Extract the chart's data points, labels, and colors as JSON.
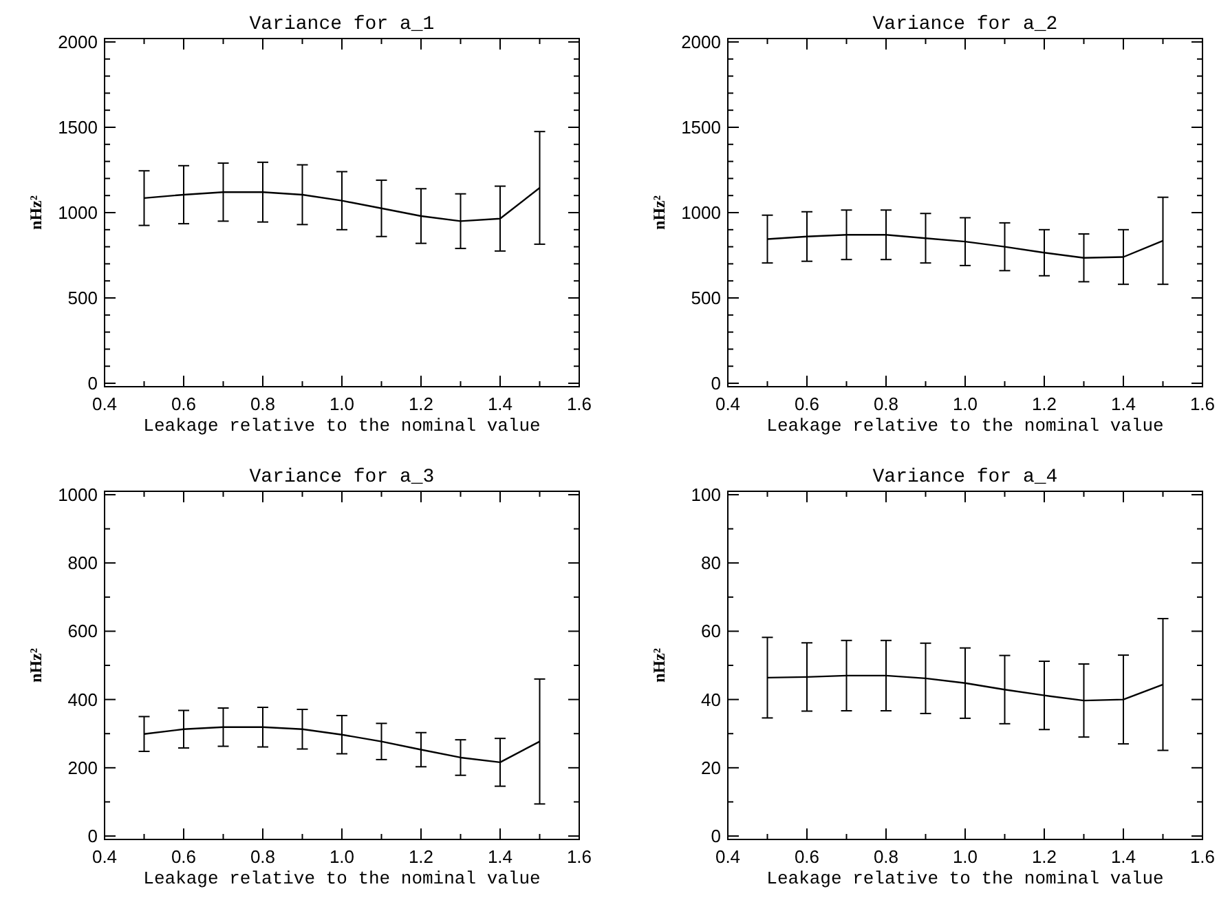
{
  "chart_data": [
    {
      "type": "line",
      "title": "Variance for a_1",
      "xlabel": "Leakage relative to the nominal value",
      "ylabel": "nHz²",
      "color": "#000000",
      "x": [
        0.5,
        0.6,
        0.7,
        0.8,
        0.9,
        1.0,
        1.1,
        1.2,
        1.3,
        1.4,
        1.5
      ],
      "values": [
        1085,
        1105,
        1120,
        1120,
        1105,
        1070,
        1025,
        980,
        950,
        965,
        1145
      ],
      "errors": [
        160,
        170,
        170,
        175,
        175,
        170,
        165,
        160,
        160,
        190,
        330
      ],
      "xlim": [
        0.4,
        1.6
      ],
      "xticks": [
        {
          "value": 0.4,
          "label": "0.4"
        },
        {
          "value": 0.5,
          "label": null
        },
        {
          "value": 0.6,
          "label": "0.6"
        },
        {
          "value": 0.7,
          "label": null
        },
        {
          "value": 0.8,
          "label": "0.8"
        },
        {
          "value": 0.9,
          "label": null
        },
        {
          "value": 1,
          "label": "1.0"
        },
        {
          "value": 1.1,
          "label": null
        },
        {
          "value": 1.2,
          "label": "1.2"
        },
        {
          "value": 1.3,
          "label": null
        },
        {
          "value": 1.4,
          "label": "1.4"
        },
        {
          "value": 1.5,
          "label": null
        },
        {
          "value": 1.6,
          "label": "1.6"
        }
      ],
      "ylim": [
        -20,
        2020
      ],
      "yticks": [
        0,
        {
          "value": 100,
          "label": null
        },
        {
          "value": 200,
          "label": null
        },
        {
          "value": 300,
          "label": null
        },
        {
          "value": 400,
          "label": null
        },
        500,
        {
          "value": 600,
          "label": null
        },
        {
          "value": 700,
          "label": null
        },
        {
          "value": 800,
          "label": null
        },
        {
          "value": 900,
          "label": null
        },
        1000,
        {
          "value": 1100,
          "label": null
        },
        {
          "value": 1200,
          "label": null
        },
        {
          "value": 1300,
          "label": null
        },
        {
          "value": 1400,
          "label": null
        },
        1500,
        {
          "value": 1600,
          "label": null
        },
        {
          "value": 1700,
          "label": null
        },
        {
          "value": 1800,
          "label": null
        },
        {
          "value": 1900,
          "label": null
        },
        2000
      ]
    },
    {
      "type": "line",
      "title": "Variance for a_2",
      "xlabel": "Leakage relative to the nominal value",
      "ylabel": "nHz²",
      "color": "#000000",
      "x": [
        0.5,
        0.6,
        0.7,
        0.8,
        0.9,
        1.0,
        1.1,
        1.2,
        1.3,
        1.4,
        1.5
      ],
      "values": [
        845,
        860,
        870,
        870,
        850,
        830,
        800,
        765,
        735,
        740,
        835
      ],
      "errors": [
        140,
        145,
        145,
        145,
        145,
        140,
        140,
        135,
        140,
        160,
        255
      ],
      "xlim": [
        0.4,
        1.6
      ],
      "xticks": [
        {
          "value": 0.4,
          "label": "0.4"
        },
        {
          "value": 0.5,
          "label": null
        },
        {
          "value": 0.6,
          "label": "0.6"
        },
        {
          "value": 0.7,
          "label": null
        },
        {
          "value": 0.8,
          "label": "0.8"
        },
        {
          "value": 0.9,
          "label": null
        },
        {
          "value": 1,
          "label": "1.0"
        },
        {
          "value": 1.1,
          "label": null
        },
        {
          "value": 1.2,
          "label": "1.2"
        },
        {
          "value": 1.3,
          "label": null
        },
        {
          "value": 1.4,
          "label": "1.4"
        },
        {
          "value": 1.5,
          "label": null
        },
        {
          "value": 1.6,
          "label": "1.6"
        }
      ],
      "ylim": [
        -20,
        2020
      ],
      "yticks": [
        0,
        {
          "value": 100,
          "label": null
        },
        {
          "value": 200,
          "label": null
        },
        {
          "value": 300,
          "label": null
        },
        {
          "value": 400,
          "label": null
        },
        500,
        {
          "value": 600,
          "label": null
        },
        {
          "value": 700,
          "label": null
        },
        {
          "value": 800,
          "label": null
        },
        {
          "value": 900,
          "label": null
        },
        1000,
        {
          "value": 1100,
          "label": null
        },
        {
          "value": 1200,
          "label": null
        },
        {
          "value": 1300,
          "label": null
        },
        {
          "value": 1400,
          "label": null
        },
        1500,
        {
          "value": 1600,
          "label": null
        },
        {
          "value": 1700,
          "label": null
        },
        {
          "value": 1800,
          "label": null
        },
        {
          "value": 1900,
          "label": null
        },
        2000
      ]
    },
    {
      "type": "line",
      "title": "Variance for a_3",
      "xlabel": "Leakage relative to the nominal value",
      "ylabel": "nHz²",
      "color": "#000000",
      "x": [
        0.5,
        0.6,
        0.7,
        0.8,
        0.9,
        1.0,
        1.1,
        1.2,
        1.3,
        1.4,
        1.5
      ],
      "values": [
        299,
        313,
        319,
        319,
        313,
        297,
        277,
        253,
        230,
        216,
        277
      ],
      "errors": [
        51,
        55,
        56,
        58,
        58,
        56,
        53,
        50,
        52,
        70,
        183
      ],
      "xlim": [
        0.4,
        1.6
      ],
      "xticks": [
        {
          "value": 0.4,
          "label": "0.4"
        },
        {
          "value": 0.5,
          "label": null
        },
        {
          "value": 0.6,
          "label": "0.6"
        },
        {
          "value": 0.7,
          "label": null
        },
        {
          "value": 0.8,
          "label": "0.8"
        },
        {
          "value": 0.9,
          "label": null
        },
        {
          "value": 1,
          "label": "1.0"
        },
        {
          "value": 1.1,
          "label": null
        },
        {
          "value": 1.2,
          "label": "1.2"
        },
        {
          "value": 1.3,
          "label": null
        },
        {
          "value": 1.4,
          "label": "1.4"
        },
        {
          "value": 1.5,
          "label": null
        },
        {
          "value": 1.6,
          "label": "1.6"
        }
      ],
      "ylim": [
        -10,
        1010
      ],
      "yticks": [
        0,
        {
          "value": 100,
          "label": null
        },
        200,
        {
          "value": 300,
          "label": null
        },
        400,
        {
          "value": 500,
          "label": null
        },
        600,
        {
          "value": 700,
          "label": null
        },
        800,
        {
          "value": 900,
          "label": null
        },
        1000
      ]
    },
    {
      "type": "line",
      "title": "Variance for a_4",
      "xlabel": "Leakage relative to the nominal value",
      "ylabel": "nHz²",
      "color": "#000000",
      "x": [
        0.5,
        0.6,
        0.7,
        0.8,
        0.9,
        1.0,
        1.1,
        1.2,
        1.3,
        1.4,
        1.5
      ],
      "values": [
        46.4,
        46.6,
        47.0,
        47.0,
        46.2,
        44.8,
        42.9,
        41.2,
        39.7,
        40.0,
        44.4
      ],
      "errors": [
        11.8,
        10.0,
        10.3,
        10.3,
        10.3,
        10.3,
        10.0,
        10.0,
        10.7,
        13.0,
        19.3
      ],
      "xlim": [
        0.4,
        1.6
      ],
      "xticks": [
        {
          "value": 0.4,
          "label": "0.4"
        },
        {
          "value": 0.5,
          "label": null
        },
        {
          "value": 0.6,
          "label": "0.6"
        },
        {
          "value": 0.7,
          "label": null
        },
        {
          "value": 0.8,
          "label": "0.8"
        },
        {
          "value": 0.9,
          "label": null
        },
        {
          "value": 1,
          "label": "1.0"
        },
        {
          "value": 1.1,
          "label": null
        },
        {
          "value": 1.2,
          "label": "1.2"
        },
        {
          "value": 1.3,
          "label": null
        },
        {
          "value": 1.4,
          "label": "1.4"
        },
        {
          "value": 1.5,
          "label": null
        },
        {
          "value": 1.6,
          "label": "1.6"
        }
      ],
      "ylim": [
        -1,
        101
      ],
      "yticks": [
        0,
        {
          "value": 10,
          "label": null
        },
        20,
        {
          "value": 30,
          "label": null
        },
        40,
        {
          "value": 50,
          "label": null
        },
        60,
        {
          "value": 70,
          "label": null
        },
        80,
        {
          "value": 90,
          "label": null
        },
        100
      ]
    }
  ]
}
